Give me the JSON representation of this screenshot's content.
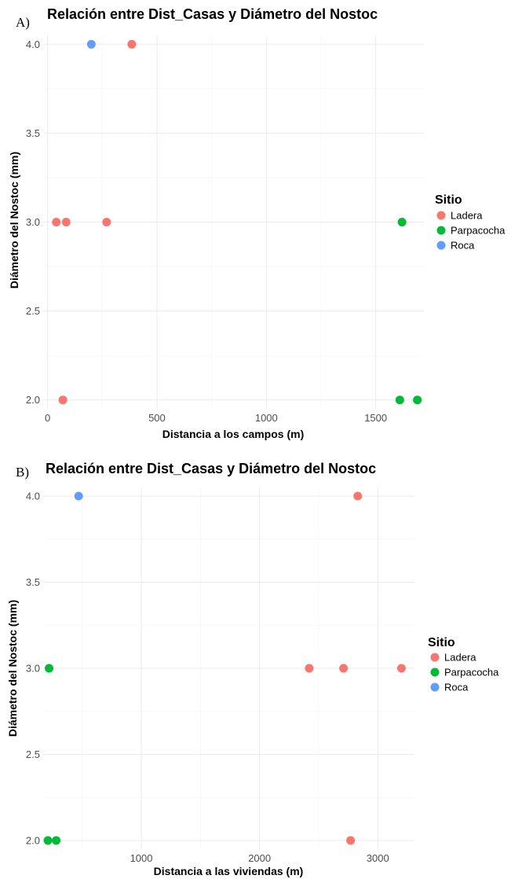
{
  "legend": {
    "title": "Sitio",
    "groups": [
      {
        "name": "Ladera",
        "color": "#F8766D"
      },
      {
        "name": "Parpacocha",
        "color": "#00BA38"
      },
      {
        "name": "Roca",
        "color": "#619CFF"
      }
    ]
  },
  "chart_data": [
    {
      "type": "scatter",
      "panel_label": "A)",
      "title": "Relación entre Dist_Casas y Diámetro del Nostoc",
      "xlabel": "Distancia a los campos (m)",
      "ylabel": "Diámetro del Nostoc (mm)",
      "xlim": [
        -20,
        1720
      ],
      "ylim": [
        1.95,
        4.05
      ],
      "xticks": [
        0,
        500,
        1000,
        1500
      ],
      "xtick_labels": [
        "0",
        "500",
        "1000",
        "1500"
      ],
      "yticks": [
        2.0,
        2.5,
        3.0,
        3.5,
        4.0
      ],
      "ytick_labels": [
        "2.0",
        "2.5",
        "3.0",
        "3.5",
        "4.0"
      ],
      "grid": true,
      "legend_position": "right",
      "series": [
        {
          "name": "Ladera",
          "color": "#F8766D",
          "points": [
            [
              385,
              4.0
            ],
            [
              40,
              3.0
            ],
            [
              85,
              3.0
            ],
            [
              270,
              3.0
            ],
            [
              70,
              2.0
            ]
          ]
        },
        {
          "name": "Parpacocha",
          "color": "#00BA38",
          "points": [
            [
              1620,
              3.0
            ],
            [
              1610,
              2.0
            ],
            [
              1690,
              2.0
            ]
          ]
        },
        {
          "name": "Roca",
          "color": "#619CFF",
          "points": [
            [
              200,
              4.0
            ]
          ]
        }
      ]
    },
    {
      "type": "scatter",
      "panel_label": "B)",
      "title": "Relación entre Dist_Casas y Diámetro del Nostoc",
      "xlabel": "Distancia a las viviendas (m)",
      "ylabel": "Diámetro del Nostoc (mm)",
      "xlim": [
        170,
        3310
      ],
      "ylim": [
        1.95,
        4.05
      ],
      "xticks": [
        1000,
        2000,
        3000
      ],
      "xtick_labels": [
        "1000",
        "2000",
        "3000"
      ],
      "yticks": [
        2.0,
        2.5,
        3.0,
        3.5,
        4.0
      ],
      "ytick_labels": [
        "2.0",
        "2.5",
        "3.0",
        "3.5",
        "4.0"
      ],
      "grid": true,
      "legend_position": "right",
      "series": [
        {
          "name": "Ladera",
          "color": "#F8766D",
          "points": [
            [
              2830,
              4.0
            ],
            [
              2420,
              3.0
            ],
            [
              2710,
              3.0
            ],
            [
              3200,
              3.0
            ],
            [
              2770,
              2.0
            ]
          ]
        },
        {
          "name": "Parpacocha",
          "color": "#00BA38",
          "points": [
            [
              220,
              3.0
            ],
            [
              210,
              2.0
            ],
            [
              280,
              2.0
            ]
          ]
        },
        {
          "name": "Roca",
          "color": "#619CFF",
          "points": [
            [
              470,
              4.0
            ]
          ]
        }
      ]
    }
  ]
}
